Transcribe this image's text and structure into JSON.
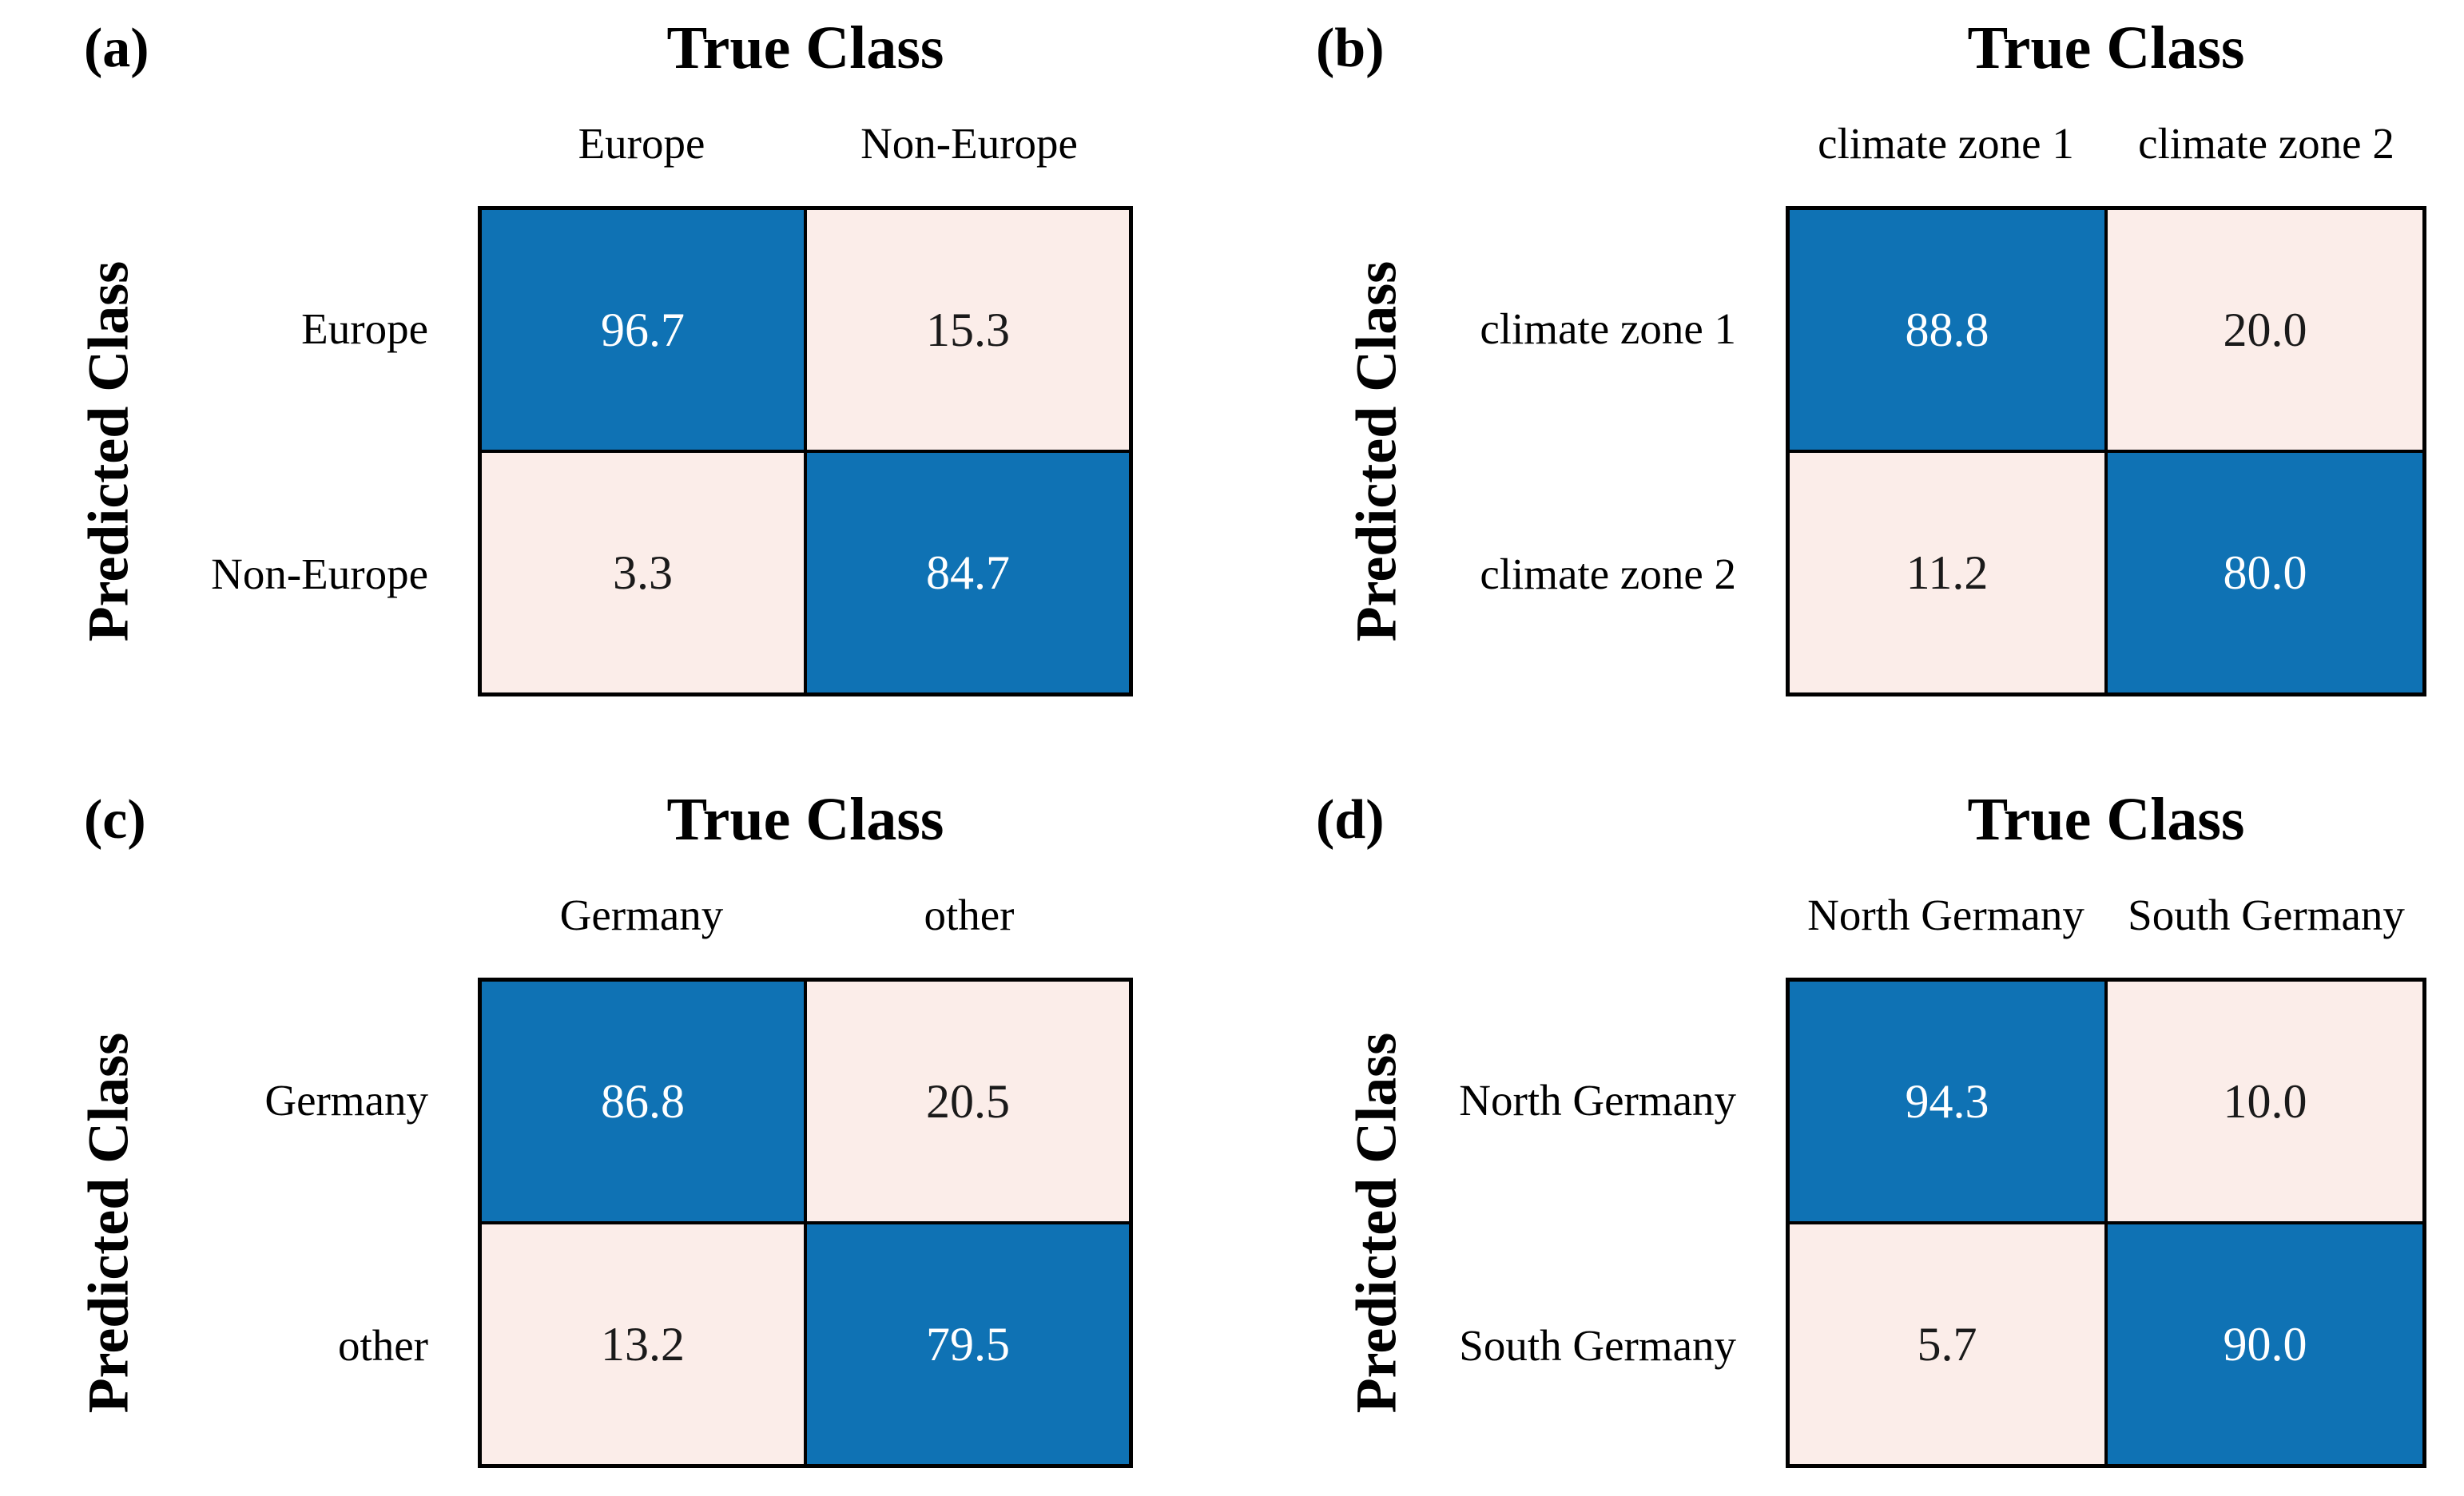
{
  "figure": {
    "axis_title_true": "True Class",
    "axis_title_predicted": "Predicted Class"
  },
  "colors": {
    "diagonal_cell": "#0f72b4",
    "off_diagonal_cell": "#fbede9",
    "diagonal_text": "#ffffff",
    "off_diagonal_text": "#1a1a1a",
    "grid_border": "#000000",
    "background": "#ffffff",
    "label_text": "#000000"
  },
  "panels": [
    {
      "label": "(a)",
      "col_headers": [
        "Europe",
        "Non-Europe"
      ],
      "row_headers": [
        "Europe",
        "Non-Europe"
      ],
      "cells": [
        "96.7",
        "15.3",
        "3.3",
        "84.7"
      ]
    },
    {
      "label": "(b)",
      "col_headers": [
        "climate zone 1",
        "climate zone 2"
      ],
      "row_headers": [
        "climate zone 1",
        "climate zone 2"
      ],
      "cells": [
        "88.8",
        "20.0",
        "11.2",
        "80.0"
      ]
    },
    {
      "label": "(c)",
      "col_headers": [
        "Germany",
        "other"
      ],
      "row_headers": [
        "Germany",
        "other"
      ],
      "cells": [
        "86.8",
        "20.5",
        "13.2",
        "79.5"
      ]
    },
    {
      "label": "(d)",
      "col_headers": [
        "North Germany",
        "South Germany"
      ],
      "row_headers": [
        "North Germany",
        "South Germany"
      ],
      "cells": [
        "94.3",
        "10.0",
        "5.7",
        "90.0"
      ]
    }
  ],
  "chart_data": [
    {
      "type": "heatmap",
      "panel": "(a)",
      "xlabel": "True Class",
      "ylabel": "Predicted Class",
      "x_categories": [
        "Europe",
        "Non-Europe"
      ],
      "y_categories": [
        "Europe",
        "Non-Europe"
      ],
      "values": [
        [
          96.7,
          15.3
        ],
        [
          3.3,
          84.7
        ]
      ],
      "value_range": [
        0,
        100
      ],
      "legend": "none",
      "color_rule": "diagonal cells dark blue with white text, off-diagonal pale pink with black text"
    },
    {
      "type": "heatmap",
      "panel": "(b)",
      "xlabel": "True Class",
      "ylabel": "Predicted Class",
      "x_categories": [
        "climate zone 1",
        "climate zone 2"
      ],
      "y_categories": [
        "climate zone 1",
        "climate zone 2"
      ],
      "values": [
        [
          88.8,
          20.0
        ],
        [
          11.2,
          80.0
        ]
      ],
      "value_range": [
        0,
        100
      ],
      "legend": "none",
      "color_rule": "diagonal cells dark blue with white text, off-diagonal pale pink with black text"
    },
    {
      "type": "heatmap",
      "panel": "(c)",
      "xlabel": "True Class",
      "ylabel": "Predicted Class",
      "x_categories": [
        "Germany",
        "other"
      ],
      "y_categories": [
        "Germany",
        "other"
      ],
      "values": [
        [
          86.8,
          20.5
        ],
        [
          13.2,
          79.5
        ]
      ],
      "value_range": [
        0,
        100
      ],
      "legend": "none",
      "color_rule": "diagonal cells dark blue with white text, off-diagonal pale pink with black text"
    },
    {
      "type": "heatmap",
      "panel": "(d)",
      "xlabel": "True Class",
      "ylabel": "Predicted Class",
      "x_categories": [
        "North Germany",
        "South Germany"
      ],
      "y_categories": [
        "North Germany",
        "South Germany"
      ],
      "values": [
        [
          94.3,
          10.0
        ],
        [
          5.7,
          90.0
        ]
      ],
      "value_range": [
        0,
        100
      ],
      "legend": "none",
      "color_rule": "diagonal cells dark blue with white text, off-diagonal pale pink with black text"
    }
  ]
}
